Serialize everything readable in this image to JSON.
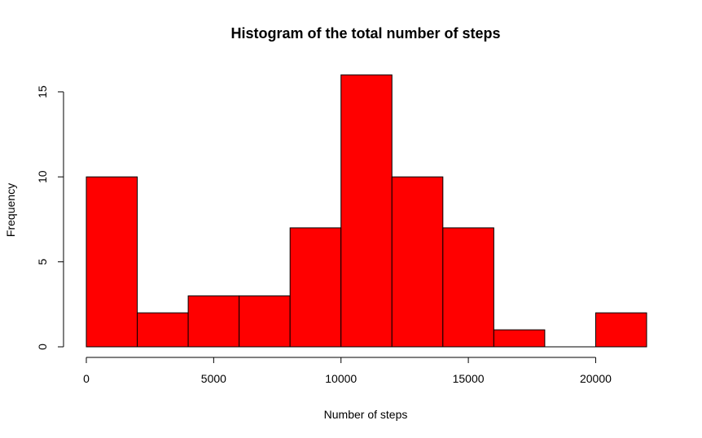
{
  "chart_data": {
    "type": "bar",
    "title": "Histogram of the total number of steps",
    "xlabel": "Number of steps",
    "ylabel": "Frequency",
    "bins": [
      {
        "start": 0,
        "end": 2000,
        "count": 10
      },
      {
        "start": 2000,
        "end": 4000,
        "count": 2
      },
      {
        "start": 4000,
        "end": 6000,
        "count": 3
      },
      {
        "start": 6000,
        "end": 8000,
        "count": 3
      },
      {
        "start": 8000,
        "end": 10000,
        "count": 7
      },
      {
        "start": 10000,
        "end": 12000,
        "count": 16
      },
      {
        "start": 12000,
        "end": 14000,
        "count": 10
      },
      {
        "start": 14000,
        "end": 16000,
        "count": 7
      },
      {
        "start": 16000,
        "end": 18000,
        "count": 1
      },
      {
        "start": 18000,
        "end": 20000,
        "count": 0
      },
      {
        "start": 20000,
        "end": 22000,
        "count": 2
      }
    ],
    "xlim": [
      0,
      22000
    ],
    "ylim": [
      0,
      16
    ],
    "x_ticks": [
      0,
      5000,
      10000,
      15000,
      20000
    ],
    "y_ticks": [
      0,
      5,
      10,
      15
    ],
    "grid": false,
    "bar_color": "#ff0000",
    "border_color": "#000000"
  }
}
